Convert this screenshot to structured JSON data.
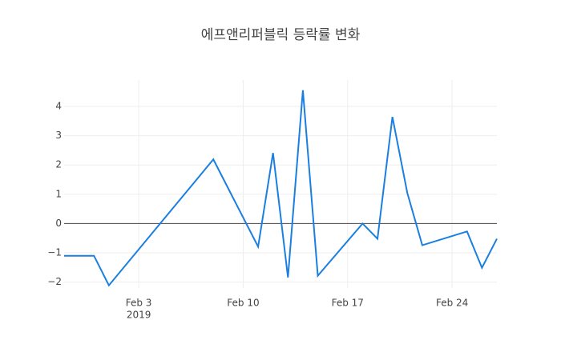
{
  "chart_data": {
    "type": "line",
    "title": "에프앤리퍼블릭 등락률 변화",
    "x": [
      "2019-01-29",
      "2019-01-31",
      "2019-02-01",
      "2019-02-08",
      "2019-02-11",
      "2019-02-12",
      "2019-02-13",
      "2019-02-14",
      "2019-02-15",
      "2019-02-18",
      "2019-02-19",
      "2019-02-20",
      "2019-02-21",
      "2019-02-22",
      "2019-02-25",
      "2019-02-26",
      "2019-02-27"
    ],
    "series": [
      {
        "color": "#1a7fe0",
        "values": [
          -1.1,
          -1.1,
          -2.11,
          2.19,
          -0.79,
          2.41,
          -1.84,
          4.55,
          -1.78,
          0,
          -0.52,
          3.64,
          1.04,
          -0.74,
          -0.27,
          -1.51,
          -0.52
        ]
      }
    ],
    "xlim": [
      "2019-01-29",
      "2019-02-27"
    ],
    "xticks": [
      {
        "value": "2019-02-03",
        "label": [
          "Feb 3",
          "2019"
        ]
      },
      {
        "value": "2019-02-10",
        "label": [
          "Feb 10"
        ]
      },
      {
        "value": "2019-02-17",
        "label": [
          "Feb 17"
        ]
      },
      {
        "value": "2019-02-24",
        "label": [
          "Feb 24"
        ]
      }
    ],
    "ylim": [
      -2.2,
      4.9
    ],
    "yticks": [
      {
        "value": -2,
        "label": "−2"
      },
      {
        "value": -1,
        "label": "−1"
      },
      0,
      1,
      2,
      3,
      4
    ],
    "grid": true,
    "zeroline": true
  }
}
